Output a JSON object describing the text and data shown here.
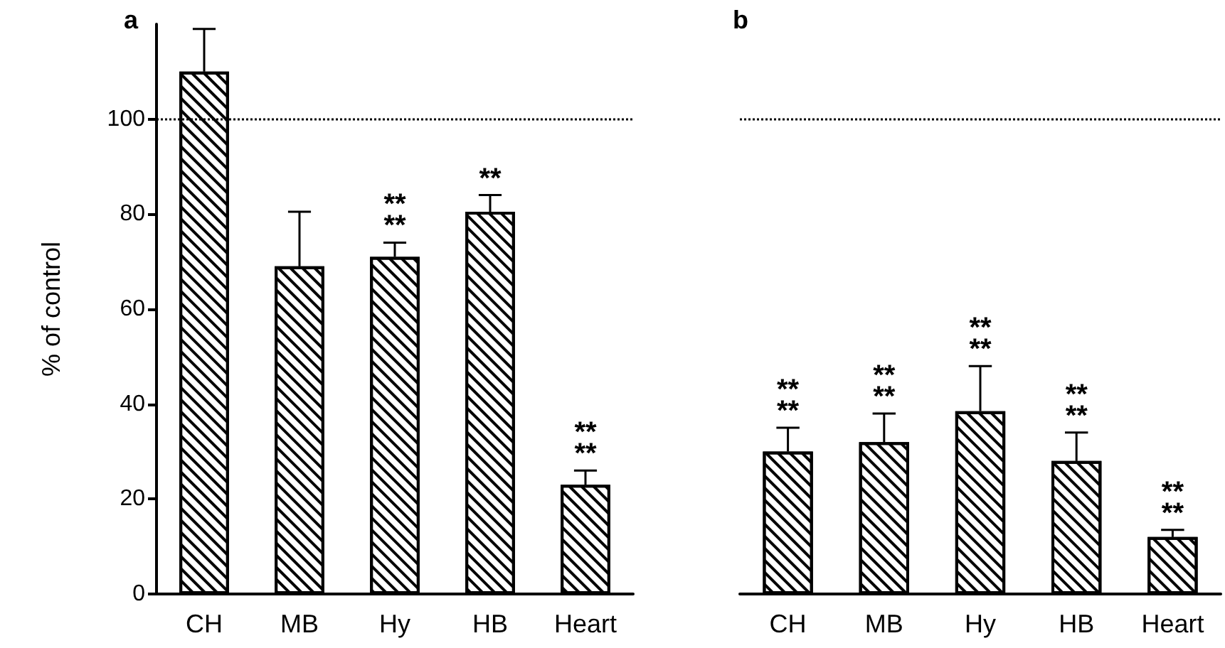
{
  "chart_data": [
    {
      "type": "bar",
      "title": "a",
      "ylabel": "% of control",
      "categories": [
        "CH",
        "MB",
        "Hy",
        "HB",
        "Heart"
      ],
      "color": "#000000",
      "values": [
        110,
        69,
        71,
        80.5,
        23
      ],
      "errors": [
        [
          110,
          119
        ],
        [
          69,
          80.5
        ],
        [
          71,
          74
        ],
        [
          80.5,
          84
        ],
        [
          23,
          26
        ]
      ],
      "ylim": [
        0,
        120
      ],
      "yticks": [
        0,
        20,
        40,
        60,
        80,
        100
      ],
      "ref_lines": [
        {
          "axis": "y",
          "value": 100,
          "line_style": "dotted"
        }
      ],
      "annotations": [
        {
          "text": "**\n**",
          "x": "Hy",
          "y": 74
        },
        {
          "text": "**",
          "x": "HB",
          "y": 84
        },
        {
          "text": "**\n**",
          "x": "Heart",
          "y": 26
        }
      ]
    },
    {
      "type": "bar",
      "title": "b",
      "categories": [
        "CH",
        "MB",
        "Hy",
        "HB",
        "Heart"
      ],
      "color": "#000000",
      "values": [
        30,
        32,
        38.5,
        28,
        12
      ],
      "errors": [
        [
          30,
          35
        ],
        [
          32,
          38
        ],
        [
          38.5,
          48
        ],
        [
          28,
          34
        ],
        [
          12,
          13.5
        ]
      ],
      "ylim": [
        0,
        100
      ],
      "yticks": [
        0,
        20,
        40,
        60,
        80,
        100
      ],
      "tick_labels": "x",
      "ref_lines": [
        {
          "axis": "y",
          "value": 100,
          "line_style": "dotted"
        }
      ],
      "annotations": [
        {
          "text": "**\n**",
          "x": "CH",
          "y": 35
        },
        {
          "text": "**\n**",
          "x": "MB",
          "y": 38
        },
        {
          "text": "**\n**",
          "x": "Hy",
          "y": 48
        },
        {
          "text": "**\n**",
          "x": "HB",
          "y": 34
        },
        {
          "text": "**\n**",
          "x": "Heart",
          "y": 13.5
        }
      ]
    }
  ]
}
